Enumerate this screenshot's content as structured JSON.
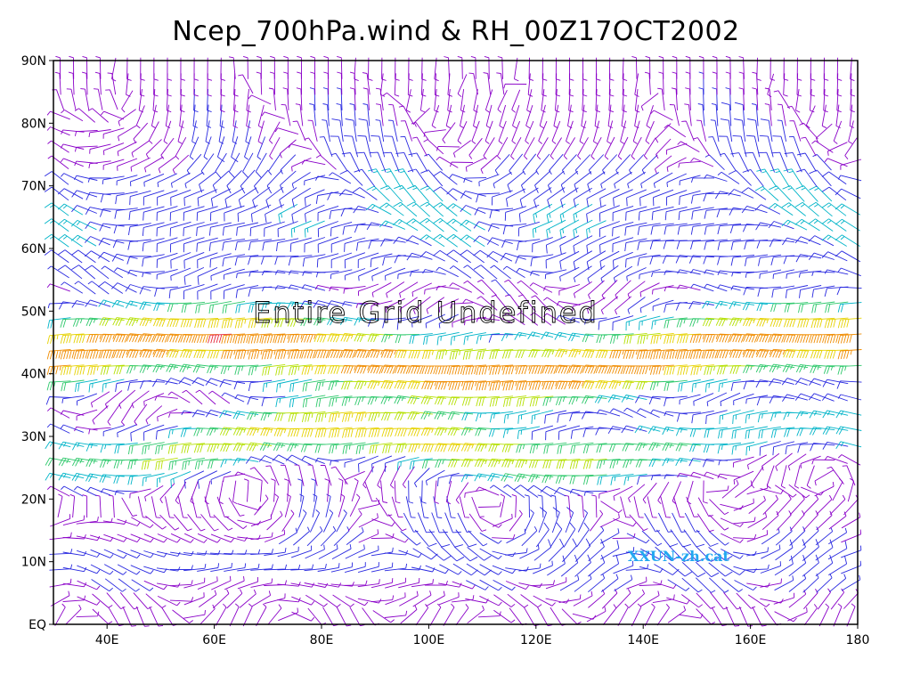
{
  "title": "Ncep_700hPa.wind & RH_00Z17OCT2002",
  "overlay_message": "Entire Grid Undefined",
  "watermark": "XXUN-zh.cat",
  "map": {
    "lon_range": [
      30,
      180
    ],
    "lat_range": [
      0,
      90
    ],
    "lat_ticks": [
      {
        "value": 90,
        "label": "90N"
      },
      {
        "value": 80,
        "label": "80N"
      },
      {
        "value": 70,
        "label": "70N"
      },
      {
        "value": 60,
        "label": "60N"
      },
      {
        "value": 50,
        "label": "50N"
      },
      {
        "value": 40,
        "label": "40N"
      },
      {
        "value": 30,
        "label": "30N"
      },
      {
        "value": 20,
        "label": "20N"
      },
      {
        "value": 10,
        "label": "10N"
      },
      {
        "value": 0,
        "label": "EQ"
      }
    ],
    "lon_ticks": [
      {
        "value": 40,
        "label": "40E"
      },
      {
        "value": 60,
        "label": "60E"
      },
      {
        "value": 80,
        "label": "80E"
      },
      {
        "value": 100,
        "label": "100E"
      },
      {
        "value": 120,
        "label": "120E"
      },
      {
        "value": 140,
        "label": "140E"
      },
      {
        "value": 160,
        "label": "160E"
      },
      {
        "value": 180,
        "label": "180"
      }
    ],
    "grid_spacing_deg": 2.5,
    "speed_colors": [
      "#8a00c8",
      "#2828e0",
      "#00b4c8",
      "#2cc86a",
      "#b4e000",
      "#e6d200",
      "#f08c00",
      "#e6283c"
    ]
  }
}
